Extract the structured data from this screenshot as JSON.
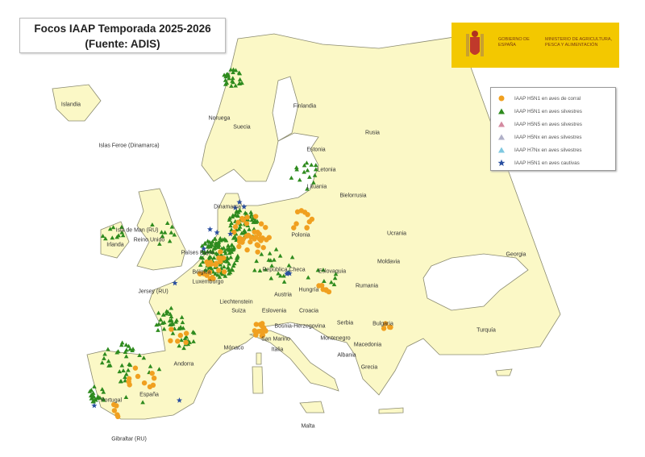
{
  "title": {
    "line1": "Focos IAAP Temporada 2025-2026",
    "line2": "(Fuente: ADIS)"
  },
  "logo": {
    "government": "GOBIERNO DE ESPAÑA",
    "ministry": "MINISTERIO DE AGRICULTURA, PESCA Y ALIMENTACIÓN",
    "background_color": "#f3c800"
  },
  "legend": {
    "items": [
      {
        "label": "IAAP H5N1 en aves de corral",
        "symbol": "circle",
        "color": "#f0a020"
      },
      {
        "label": "IAAP H5N1 en aves silvestres",
        "symbol": "triangle",
        "color": "#2e8b1e"
      },
      {
        "label": "IAAP H5N5 en aves silvestres",
        "symbol": "triangle",
        "color": "#d48aa0"
      },
      {
        "label": "IAAP H5Nx en aves silvestres",
        "symbol": "triangle",
        "color": "#b0b0c8"
      },
      {
        "label": "IAAP H7Nx en aves silvestres",
        "symbol": "triangle",
        "color": "#7fc8e0"
      },
      {
        "label": "IAAP H5N1 en aves cautivas",
        "symbol": "star",
        "color": "#2a4fa0"
      }
    ]
  },
  "colors": {
    "land": "#fbf8c6",
    "sea": "#ffffff",
    "border": "#8a8a70"
  },
  "countries": {
    "islandia": "Islandia",
    "feroe": "Islas Feroe (Dinamarca)",
    "noruega": "Noruega",
    "suecia": "Suecia",
    "finlandia": "Finlandia",
    "rusia": "Rusia",
    "estonia": "Estonia",
    "letonia": "Letonia",
    "lituania": "Lituania",
    "bielorrusia": "Bielorrusia",
    "dinamarca": "Dinamarca",
    "polonia": "Polonia",
    "ucrania": "Ucrania",
    "moldavia": "Moldavia",
    "georgia": "Georgia",
    "rumania": "Rumania",
    "bulgaria": "Bulgaria",
    "turquia": "Turquía",
    "grecia": "Grecia",
    "albania": "Albania",
    "macedonia": "Macedonia",
    "montenegro": "Montenegro",
    "serbia": "Serbia",
    "croacia": "Croacia",
    "bosnia": "Bosnia-Herzegovina",
    "hungria": "Hungría",
    "austria": "Austria",
    "eslovaquia": "Eslovaquia",
    "chequia": "República Checa",
    "liechtenstein": "Liechtenstein",
    "suiza": "Suiza",
    "eslovenia": "Eslovenia",
    "sanmarino": "San Marino",
    "italia": "Italia",
    "monaco": "Mónaco",
    "andorra": "Andorra",
    "espana": "España",
    "portugal": "Portugal",
    "gibraltar": "Gibraltar (RU)",
    "malta": "Malta",
    "irlanda": "Irlanda",
    "reinounido": "Reino Unido",
    "islademan": "Isla de Man (RU)",
    "jersey": "Jersey (RU)",
    "paisesbajos": "Países Bajos",
    "belgica": "Bélgica",
    "luxemburgo": "Luxemburgo"
  }
}
